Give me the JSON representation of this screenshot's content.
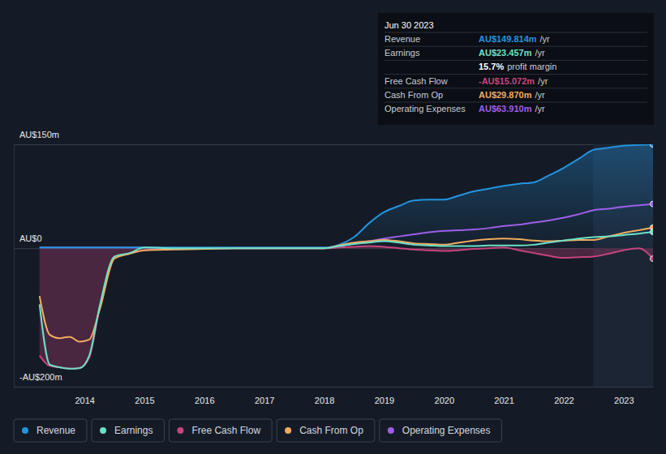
{
  "chart_data": {
    "type": "line",
    "x": [
      2013.25,
      2013.42,
      2013.58,
      2013.75,
      2013.92,
      2014.08,
      2014.25,
      2014.5,
      2014.75,
      2015,
      2015.5,
      2016,
      2016.5,
      2017,
      2017.5,
      2018,
      2018.25,
      2018.5,
      2018.75,
      2019,
      2019.25,
      2019.5,
      2019.75,
      2020,
      2020.25,
      2020.5,
      2020.75,
      2021,
      2021.25,
      2021.5,
      2021.75,
      2022,
      2022.25,
      2022.5,
      2022.75,
      2023,
      2023.25,
      2023.49
    ],
    "series": [
      {
        "name": "Revenue",
        "color": "#2394df",
        "values": [
          1,
          1,
          1,
          1,
          1,
          1,
          1,
          1,
          1,
          1,
          1,
          1,
          1,
          1,
          1,
          1,
          5,
          16,
          36,
          52,
          61,
          69,
          70,
          70,
          76,
          82,
          86,
          90,
          93,
          95,
          105,
          116,
          129,
          142,
          145,
          148,
          149,
          149.814
        ]
      },
      {
        "name": "Earnings",
        "color": "#6ce0c6",
        "values": [
          -81,
          -168,
          -172,
          -174,
          -173,
          -155,
          -85,
          -12,
          -7,
          1,
          0,
          0,
          0,
          0,
          0,
          0,
          3,
          6,
          8,
          10,
          8,
          5,
          4,
          3,
          3,
          3,
          4,
          4,
          4,
          5,
          8,
          11,
          14,
          16,
          17,
          19,
          21,
          23.457
        ]
      },
      {
        "name": "Free Cash Flow",
        "color": "#c6457e",
        "values": [
          -155,
          -170,
          -172,
          -174,
          -173,
          -158,
          -88,
          -14,
          -8,
          -3,
          0,
          0,
          0,
          0,
          0,
          0,
          1,
          2,
          3,
          2,
          0,
          -2,
          -3,
          -4,
          -3,
          -1,
          0,
          1,
          -3,
          -7,
          -11,
          -14,
          -13,
          -12,
          -8,
          -3,
          0,
          -15.072
        ]
      },
      {
        "name": "Cash From Op",
        "color": "#f0ab61",
        "values": [
          -69,
          -125,
          -130,
          -128,
          -135,
          -132,
          -90,
          -15,
          -8,
          -3,
          -2,
          -1,
          0,
          0,
          0,
          0,
          4,
          8,
          10,
          12,
          10,
          7,
          6,
          5,
          8,
          11,
          13,
          14,
          13,
          11,
          10,
          11,
          12,
          12,
          17,
          22,
          26,
          29.87
        ]
      },
      {
        "name": "Operating Expenses",
        "color": "#9d5fe8",
        "values": [
          1,
          1,
          1,
          1,
          1,
          1,
          1,
          1,
          1,
          1,
          0,
          0,
          0,
          0,
          0,
          0,
          3,
          7,
          10,
          14,
          17,
          20,
          23,
          25,
          26,
          27,
          29,
          32,
          34,
          37,
          40,
          44,
          49,
          55,
          57,
          60,
          62,
          63.91
        ]
      }
    ],
    "xlim": [
      2012.82,
      2023.49
    ],
    "xticks": [
      2014,
      2015,
      2016,
      2017,
      2018,
      2019,
      2020,
      2021,
      2022,
      2023
    ],
    "ylim": [
      -200,
      150
    ],
    "yticks": [
      {
        "value": -200,
        "label": "-AU$200m"
      },
      {
        "value": 0,
        "label": "AU$0"
      },
      {
        "value": 150,
        "label": "AU$150m"
      }
    ],
    "grid": true,
    "legend": "bottom",
    "annotations": {
      "date": "Jun 30 2023",
      "values": [
        "AU$149.814m",
        "AU$23.457m",
        "-AU$15.072m",
        "AU$29.870m",
        "AU$63.910m"
      ],
      "unit": "/yr",
      "margin_value": "15.7%",
      "margin_label": "profit margin"
    }
  }
}
